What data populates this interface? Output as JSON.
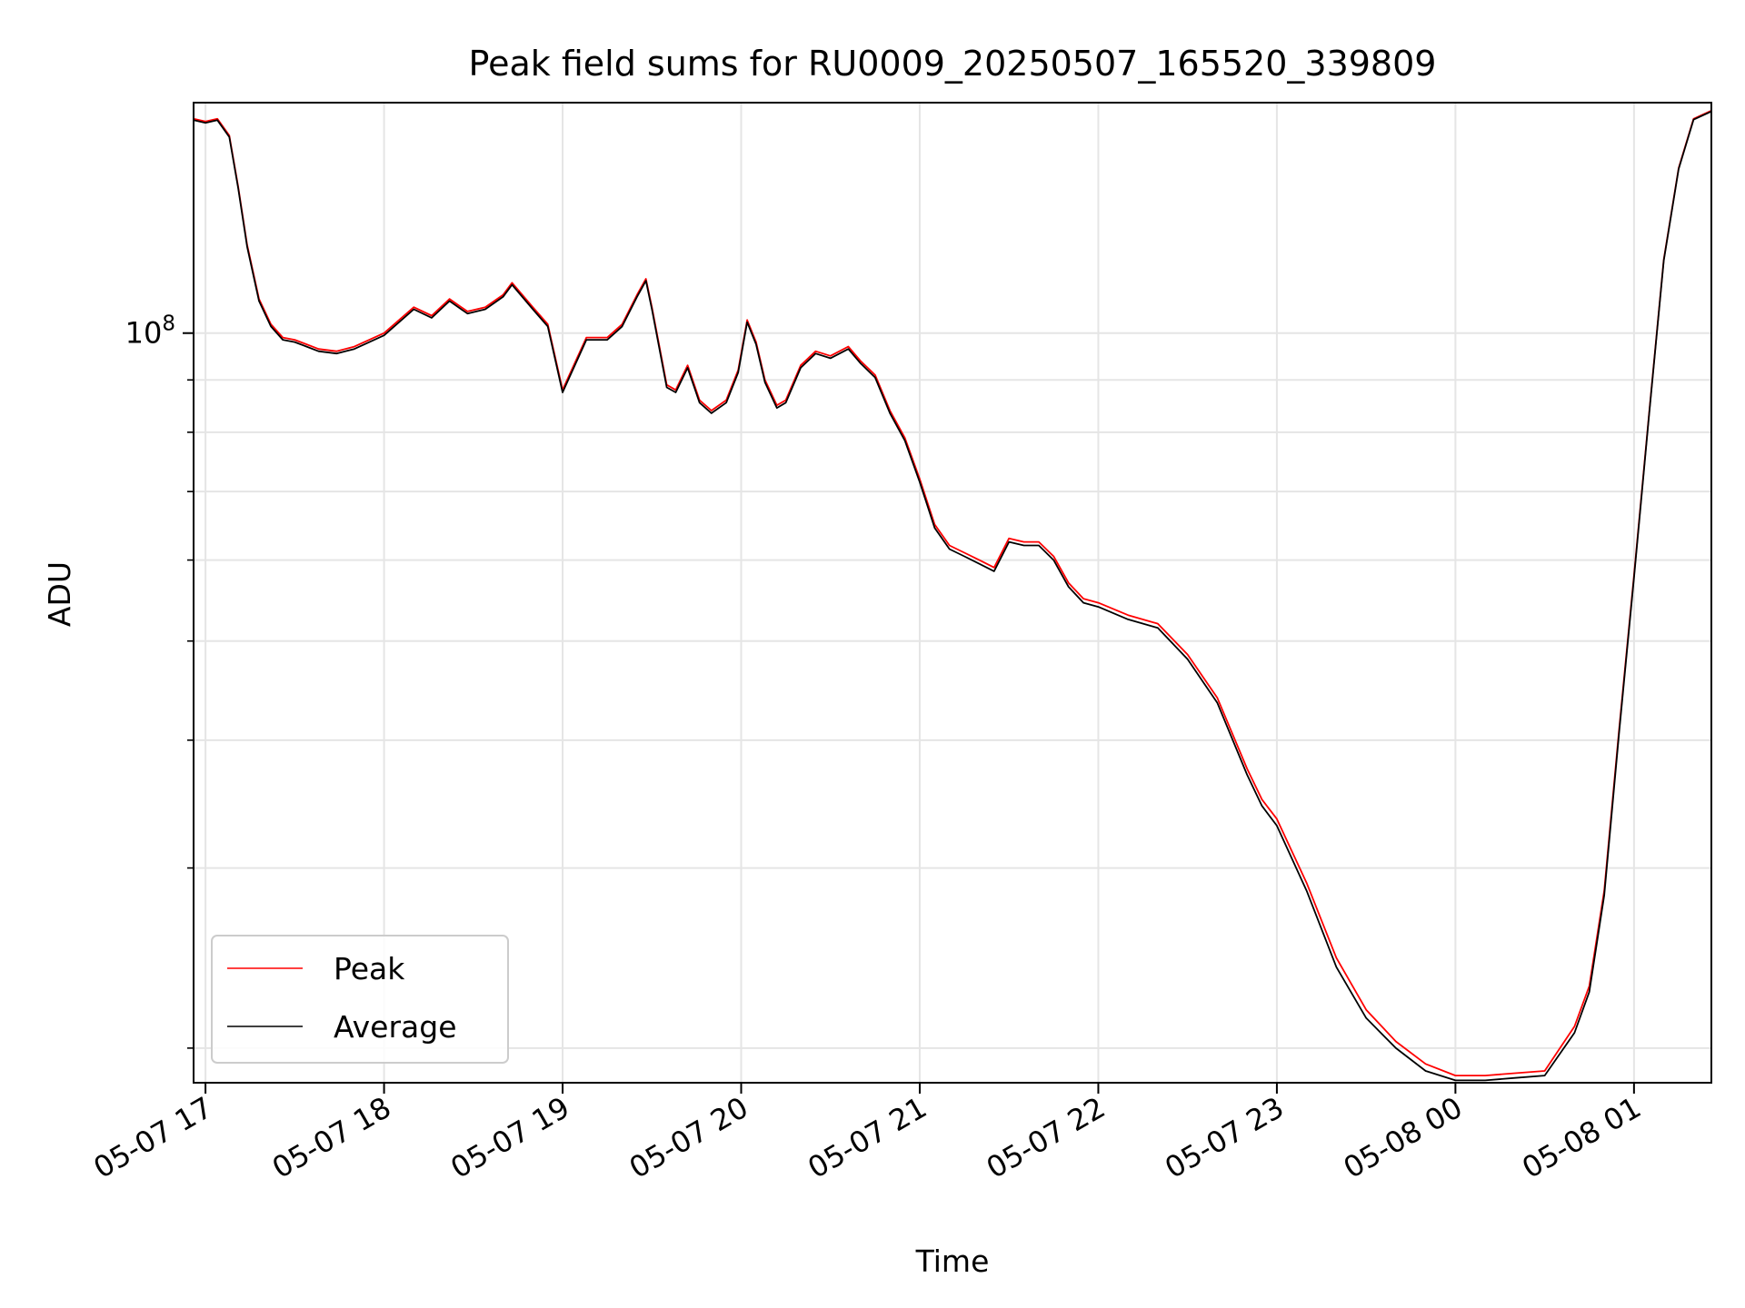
{
  "chart_data": {
    "type": "line",
    "title": "Peak field sums for RU0009_20250507_165520_339809",
    "xlabel": "Time",
    "ylabel": "ADU",
    "yscale": "log",
    "grid": true,
    "legend_position": "lower-left",
    "x_ticks": [
      {
        "value": "2025-05-07 17:00",
        "label": "05-07 17"
      },
      {
        "value": "2025-05-07 18:00",
        "label": "05-07 18"
      },
      {
        "value": "2025-05-07 19:00",
        "label": "05-07 19"
      },
      {
        "value": "2025-05-07 20:00",
        "label": "05-07 20"
      },
      {
        "value": "2025-05-07 21:00",
        "label": "05-07 21"
      },
      {
        "value": "2025-05-07 22:00",
        "label": "05-07 22"
      },
      {
        "value": "2025-05-07 23:00",
        "label": "05-07 23"
      },
      {
        "value": "2025-05-08 00:00",
        "label": "05-08 00"
      },
      {
        "value": "2025-05-08 01:00",
        "label": "05-08 01"
      }
    ],
    "y_major_ticks": [
      {
        "value": 100000000,
        "label_base": "10",
        "label_exp": "8"
      }
    ],
    "y_minor_ticks": [
      20000000,
      30000000,
      40000000,
      50000000,
      60000000,
      70000000,
      80000000,
      90000000
    ],
    "xlim": [
      "2025-05-07 16:56",
      "2025-05-08 01:26"
    ],
    "ylim": [
      18500000,
      168000000
    ],
    "series": [
      {
        "name": "Peak",
        "color": "#ff0000",
        "x": [
          "2025-05-07 16:56",
          "2025-05-07 17:00",
          "2025-05-07 17:04",
          "2025-05-07 17:08",
          "2025-05-07 17:11",
          "2025-05-07 17:14",
          "2025-05-07 17:18",
          "2025-05-07 17:22",
          "2025-05-07 17:26",
          "2025-05-07 17:30",
          "2025-05-07 17:34",
          "2025-05-07 17:38",
          "2025-05-07 17:44",
          "2025-05-07 17:50",
          "2025-05-07 18:00",
          "2025-05-07 18:10",
          "2025-05-07 18:16",
          "2025-05-07 18:22",
          "2025-05-07 18:28",
          "2025-05-07 18:34",
          "2025-05-07 18:40",
          "2025-05-07 18:43",
          "2025-05-07 18:50",
          "2025-05-07 18:55",
          "2025-05-07 19:00",
          "2025-05-07 19:08",
          "2025-05-07 19:15",
          "2025-05-07 19:20",
          "2025-05-07 19:25",
          "2025-05-07 19:28",
          "2025-05-07 19:30",
          "2025-05-07 19:35",
          "2025-05-07 19:38",
          "2025-05-07 19:42",
          "2025-05-07 19:46",
          "2025-05-07 19:50",
          "2025-05-07 19:55",
          "2025-05-07 19:59",
          "2025-05-07 20:02",
          "2025-05-07 20:05",
          "2025-05-07 20:08",
          "2025-05-07 20:12",
          "2025-05-07 20:15",
          "2025-05-07 20:20",
          "2025-05-07 20:25",
          "2025-05-07 20:30",
          "2025-05-07 20:36",
          "2025-05-07 20:40",
          "2025-05-07 20:45",
          "2025-05-07 20:50",
          "2025-05-07 20:55",
          "2025-05-07 21:00",
          "2025-05-07 21:05",
          "2025-05-07 21:10",
          "2025-05-07 21:15",
          "2025-05-07 21:20",
          "2025-05-07 21:25",
          "2025-05-07 21:30",
          "2025-05-07 21:35",
          "2025-05-07 21:40",
          "2025-05-07 21:45",
          "2025-05-07 21:50",
          "2025-05-07 21:55",
          "2025-05-07 22:00",
          "2025-05-07 22:10",
          "2025-05-07 22:20",
          "2025-05-07 22:30",
          "2025-05-07 22:40",
          "2025-05-07 22:50",
          "2025-05-07 22:55",
          "2025-05-07 23:00",
          "2025-05-07 23:10",
          "2025-05-07 23:20",
          "2025-05-07 23:30",
          "2025-05-07 23:40",
          "2025-05-07 23:50",
          "2025-05-08 00:00",
          "2025-05-08 00:10",
          "2025-05-08 00:20",
          "2025-05-08 00:30",
          "2025-05-08 00:40",
          "2025-05-08 00:45",
          "2025-05-08 00:50",
          "2025-05-08 00:55",
          "2025-05-08 01:00",
          "2025-05-08 01:05",
          "2025-05-08 01:10",
          "2025-05-08 01:15",
          "2025-05-08 01:20",
          "2025-05-08 01:26"
        ],
        "values": [
          162000000,
          161000000,
          162000000,
          156000000,
          139000000,
          122000000,
          108000000,
          102000000,
          99000000,
          98500000,
          97500000,
          96500000,
          96000000,
          97000000,
          100000000,
          106000000,
          104000000,
          108000000,
          105000000,
          106000000,
          109000000,
          112000000,
          106000000,
          102000000,
          88000000,
          99000000,
          99000000,
          102000000,
          109000000,
          113000000,
          106000000,
          89000000,
          88000000,
          93000000,
          86000000,
          84000000,
          86000000,
          92000000,
          103000000,
          98000000,
          90000000,
          85000000,
          86000000,
          93000000,
          96000000,
          95000000,
          97000000,
          94000000,
          91000000,
          84000000,
          79000000,
          72000000,
          65000000,
          62000000,
          61000000,
          60000000,
          59000000,
          63000000,
          62500000,
          62500000,
          60500000,
          57000000,
          55000000,
          54500000,
          53000000,
          52000000,
          48500000,
          44000000,
          37500000,
          35000000,
          33500000,
          29000000,
          24500000,
          21800000,
          20300000,
          19300000,
          18800000,
          18800000,
          18900000,
          19000000,
          21000000,
          23000000,
          28500000,
          41000000,
          58000000,
          83000000,
          118000000,
          145000000,
          162000000,
          165000000
        ]
      },
      {
        "name": "Average",
        "color": "#000000",
        "x": [
          "2025-05-07 16:56",
          "2025-05-07 17:00",
          "2025-05-07 17:04",
          "2025-05-07 17:08",
          "2025-05-07 17:11",
          "2025-05-07 17:14",
          "2025-05-07 17:18",
          "2025-05-07 17:22",
          "2025-05-07 17:26",
          "2025-05-07 17:30",
          "2025-05-07 17:34",
          "2025-05-07 17:38",
          "2025-05-07 17:44",
          "2025-05-07 17:50",
          "2025-05-07 18:00",
          "2025-05-07 18:10",
          "2025-05-07 18:16",
          "2025-05-07 18:22",
          "2025-05-07 18:28",
          "2025-05-07 18:34",
          "2025-05-07 18:40",
          "2025-05-07 18:43",
          "2025-05-07 18:50",
          "2025-05-07 18:55",
          "2025-05-07 19:00",
          "2025-05-07 19:08",
          "2025-05-07 19:15",
          "2025-05-07 19:20",
          "2025-05-07 19:25",
          "2025-05-07 19:28",
          "2025-05-07 19:30",
          "2025-05-07 19:35",
          "2025-05-07 19:38",
          "2025-05-07 19:42",
          "2025-05-07 19:46",
          "2025-05-07 19:50",
          "2025-05-07 19:55",
          "2025-05-07 19:59",
          "2025-05-07 20:02",
          "2025-05-07 20:05",
          "2025-05-07 20:08",
          "2025-05-07 20:12",
          "2025-05-07 20:15",
          "2025-05-07 20:20",
          "2025-05-07 20:25",
          "2025-05-07 20:30",
          "2025-05-07 20:36",
          "2025-05-07 20:40",
          "2025-05-07 20:45",
          "2025-05-07 20:50",
          "2025-05-07 20:55",
          "2025-05-07 21:00",
          "2025-05-07 21:05",
          "2025-05-07 21:10",
          "2025-05-07 21:15",
          "2025-05-07 21:20",
          "2025-05-07 21:25",
          "2025-05-07 21:30",
          "2025-05-07 21:35",
          "2025-05-07 21:40",
          "2025-05-07 21:45",
          "2025-05-07 21:50",
          "2025-05-07 21:55",
          "2025-05-07 22:00",
          "2025-05-07 22:10",
          "2025-05-07 22:20",
          "2025-05-07 22:30",
          "2025-05-07 22:40",
          "2025-05-07 22:50",
          "2025-05-07 22:55",
          "2025-05-07 23:00",
          "2025-05-07 23:10",
          "2025-05-07 23:20",
          "2025-05-07 23:30",
          "2025-05-07 23:40",
          "2025-05-07 23:50",
          "2025-05-08 00:00",
          "2025-05-08 00:10",
          "2025-05-08 00:20",
          "2025-05-08 00:30",
          "2025-05-08 00:40",
          "2025-05-08 00:45",
          "2025-05-08 00:50",
          "2025-05-08 00:55",
          "2025-05-08 01:00",
          "2025-05-08 01:05",
          "2025-05-08 01:10",
          "2025-05-08 01:15",
          "2025-05-08 01:20",
          "2025-05-08 01:26"
        ],
        "values": [
          161500000,
          160500000,
          161500000,
          155500000,
          138500000,
          121500000,
          107500000,
          101500000,
          98500000,
          98000000,
          97000000,
          96000000,
          95500000,
          96500000,
          99500000,
          105500000,
          103500000,
          107500000,
          104500000,
          105500000,
          108500000,
          111500000,
          105500000,
          101500000,
          87500000,
          98500000,
          98500000,
          101500000,
          108500000,
          112500000,
          105500000,
          88500000,
          87500000,
          92500000,
          85500000,
          83500000,
          85500000,
          91500000,
          102500000,
          97500000,
          89500000,
          84500000,
          85500000,
          92500000,
          95500000,
          94500000,
          96500000,
          93500000,
          90500000,
          83500000,
          78500000,
          71500000,
          64500000,
          61500000,
          60500000,
          59500000,
          58500000,
          62500000,
          62000000,
          62000000,
          60000000,
          56500000,
          54500000,
          54000000,
          52500000,
          51500000,
          48000000,
          43500000,
          37000000,
          34500000,
          33000000,
          28500000,
          24000000,
          21400000,
          20000000,
          19000000,
          18600000,
          18600000,
          18700000,
          18800000,
          20700000,
          22700000,
          28200000,
          40700000,
          57700000,
          82700000,
          117700000,
          144700000,
          161700000,
          164700000
        ]
      }
    ]
  }
}
